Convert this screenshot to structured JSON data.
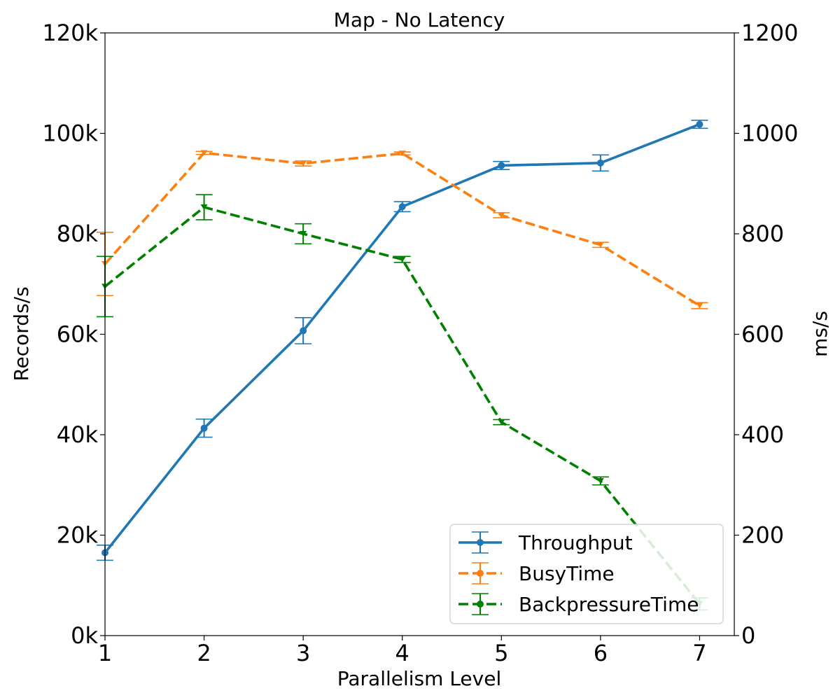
{
  "chart_data": {
    "type": "line",
    "title": "Map - No Latency",
    "xlabel": "Parallelism Level",
    "ylabel": "Records/s",
    "y2label": "ms/s",
    "x": [
      1,
      2,
      3,
      4,
      5,
      6,
      7
    ],
    "xlim": [
      1,
      7.35
    ],
    "ylim": [
      0,
      120000
    ],
    "y2lim": [
      0,
      1200
    ],
    "x_ticks": [
      "1",
      "2",
      "3",
      "4",
      "5",
      "6",
      "7"
    ],
    "y_ticks": [
      "0k",
      "20k",
      "40k",
      "60k",
      "80k",
      "100k",
      "120k"
    ],
    "y2_ticks": [
      "0",
      "200",
      "400",
      "600",
      "800",
      "1000",
      "1200"
    ],
    "grid": false,
    "legend_position": "lower-right",
    "series": [
      {
        "name": "Throughput",
        "axis": "left",
        "style": "solid",
        "color": "#1f77b4",
        "values": [
          16500,
          41300,
          60700,
          85400,
          93600,
          94100,
          101800
        ],
        "errors": [
          1500,
          1800,
          2600,
          1000,
          800,
          1600,
          800
        ]
      },
      {
        "name": "BusyTime",
        "axis": "right",
        "style": "dashed",
        "color": "#ff7f0e",
        "values": [
          740,
          961,
          940,
          960,
          837,
          778,
          657
        ],
        "errors": [
          63,
          3,
          5,
          3,
          5,
          5,
          6
        ]
      },
      {
        "name": "BackpressureTime",
        "axis": "right",
        "style": "dashed",
        "color": "#008000",
        "values": [
          695,
          853,
          800,
          749,
          425,
          308,
          63
        ],
        "errors": [
          60,
          25,
          20,
          6,
          5,
          8,
          12
        ]
      }
    ]
  }
}
